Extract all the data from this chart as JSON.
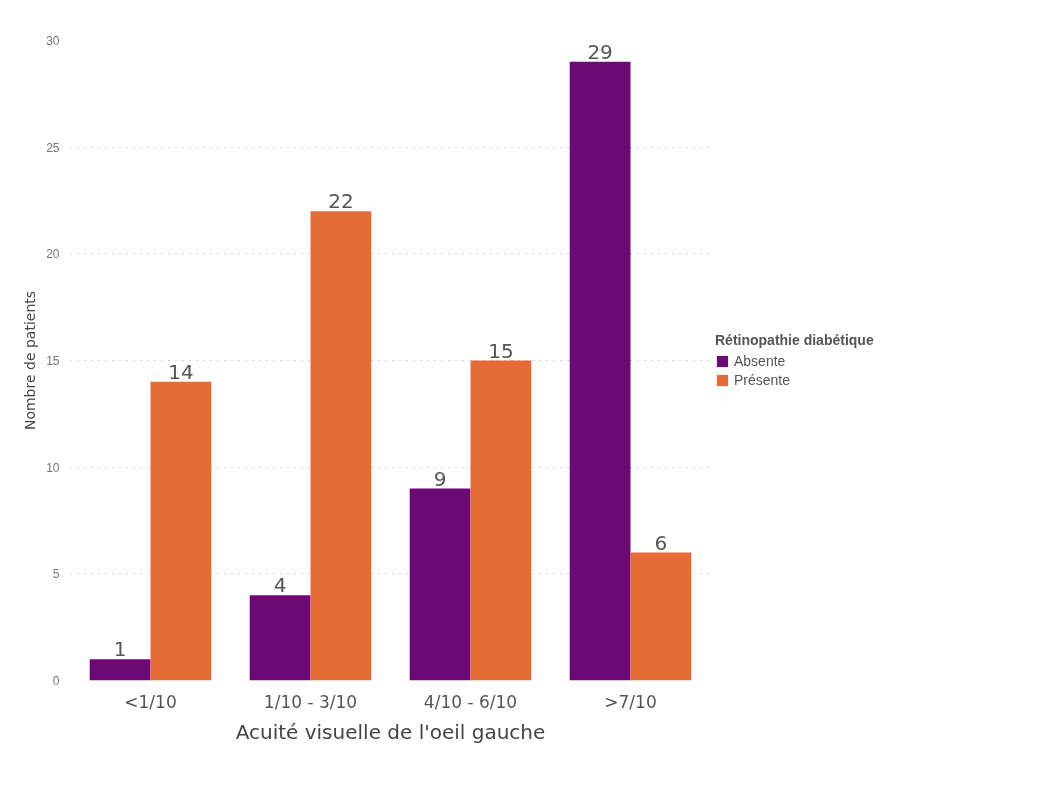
{
  "chart_data": {
    "type": "bar",
    "xlabel": "Acuité visuelle de l'oeil gauche",
    "ylabel": "Nombre de patients",
    "legend_title": "Rétinopathie diabétique",
    "categories": [
      "<1/10",
      "1/10 - 3/10",
      "4/10 - 6/10",
      ">7/10"
    ],
    "series": [
      {
        "name": "Absente",
        "color": "#6b0a75",
        "values": [
          1,
          4,
          9,
          29
        ]
      },
      {
        "name": "Présente",
        "color": "#e66c37",
        "values": [
          14,
          22,
          15,
          6
        ]
      }
    ],
    "ylim": [
      0,
      30
    ],
    "yticks": [
      0,
      5,
      10,
      15,
      20,
      25,
      30
    ],
    "grid": "y",
    "legend": "right",
    "data_labels": true
  }
}
